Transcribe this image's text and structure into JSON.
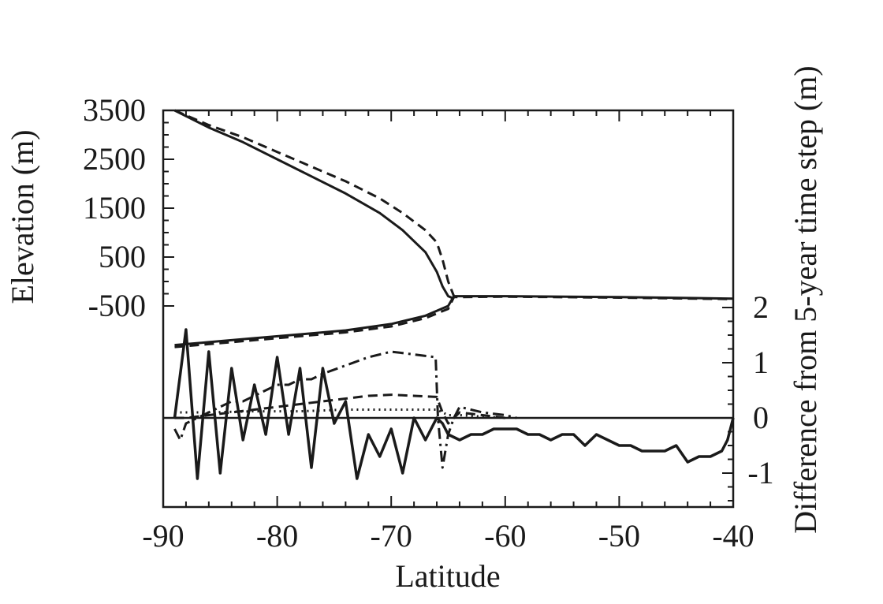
{
  "chart_data": {
    "type": "line",
    "xlabel": "Latitude",
    "ylabel_left": "Elevation (m)",
    "ylabel_right": "Difference from 5-year time step (m)",
    "xlim": [
      -90,
      -40
    ],
    "x_ticks": [
      -90,
      -80,
      -70,
      -60,
      -50,
      -40
    ],
    "elevation_axis": {
      "ylim": [
        -950,
        3500
      ],
      "ticks": [
        3500,
        2500,
        1500,
        500,
        -500
      ]
    },
    "difference_axis": {
      "ylim": [
        -1.6,
        2.2
      ],
      "ticks": [
        2,
        1,
        0,
        -1
      ]
    },
    "elevation_series": [
      {
        "style": "solid",
        "x": [
          -89,
          -86,
          -83,
          -80,
          -77,
          -74,
          -71,
          -69,
          -67,
          -66,
          -65.5,
          -65,
          -64.5
        ],
        "y": [
          3500,
          3150,
          2850,
          2500,
          2150,
          1800,
          1400,
          1050,
          600,
          200,
          -100,
          -300,
          -350
        ]
      },
      {
        "style": "dashed",
        "x": [
          -89,
          -86,
          -83,
          -80,
          -77,
          -74,
          -71,
          -69,
          -67,
          -66,
          -65.5,
          -65,
          -64.5,
          -64
        ],
        "y": [
          3500,
          3200,
          2950,
          2650,
          2350,
          2050,
          1700,
          1400,
          1050,
          800,
          450,
          0,
          -300,
          -350
        ]
      },
      {
        "style": "solid",
        "x": [
          -89,
          -86,
          -82,
          -78,
          -74,
          -70,
          -67,
          -65,
          -64.5,
          -60,
          -50,
          -40
        ],
        "y": [
          -1300,
          -1240,
          -1160,
          -1080,
          -1000,
          -870,
          -700,
          -500,
          -300,
          -300,
          -320,
          -350
        ]
      },
      {
        "style": "dashed",
        "x": [
          -89,
          -86,
          -82,
          -78,
          -74,
          -70,
          -67,
          -65,
          -64.5,
          -60,
          -50,
          -40
        ],
        "y": [
          -1340,
          -1280,
          -1200,
          -1120,
          -1040,
          -920,
          -750,
          -560,
          -320,
          -310,
          -330,
          -360
        ]
      }
    ],
    "difference_series": [
      {
        "style": "solid",
        "x": [
          -89,
          -88,
          -87,
          -86,
          -85,
          -84,
          -83,
          -82,
          -81,
          -80,
          -79,
          -78,
          -77,
          -76,
          -75,
          -74,
          -73,
          -72,
          -71,
          -70,
          -69,
          -68,
          -67,
          -66,
          -65.5,
          -65,
          -64,
          -63,
          -62,
          -61,
          -60,
          -59,
          -58,
          -57,
          -56,
          -55,
          -54,
          -53,
          -52,
          -51,
          -50,
          -49,
          -48,
          -47,
          -46,
          -45,
          -44,
          -43,
          -42,
          -41,
          -40.5,
          -40
        ],
        "y": [
          0.0,
          1.6,
          -1.1,
          1.2,
          -1.0,
          0.9,
          -0.4,
          0.6,
          -0.3,
          1.1,
          -0.3,
          0.9,
          -0.9,
          0.9,
          -0.1,
          0.3,
          -1.1,
          -0.3,
          -0.7,
          -0.2,
          -1.0,
          0.0,
          -0.4,
          0.0,
          -0.1,
          -0.3,
          -0.4,
          -0.3,
          -0.3,
          -0.2,
          -0.2,
          -0.2,
          -0.3,
          -0.3,
          -0.4,
          -0.3,
          -0.3,
          -0.5,
          -0.3,
          -0.4,
          -0.5,
          -0.5,
          -0.6,
          -0.6,
          -0.6,
          -0.5,
          -0.8,
          -0.7,
          -0.7,
          -0.6,
          -0.4,
          0.0
        ]
      },
      {
        "style": "dash-dot",
        "x": [
          -89,
          -88.5,
          -88,
          -87,
          -86,
          -85,
          -84,
          -83,
          -82,
          -81,
          -80,
          -79,
          -78,
          -77,
          -76,
          -74,
          -72,
          -70,
          -68,
          -66.1,
          -65.9,
          -65.5,
          -65,
          -64.5,
          -64,
          -62,
          -60,
          -59
        ],
        "y": [
          -0.2,
          -0.4,
          -0.1,
          0.0,
          0.1,
          0.2,
          0.3,
          0.3,
          0.4,
          0.5,
          0.6,
          0.6,
          0.7,
          0.7,
          0.8,
          0.95,
          1.1,
          1.2,
          1.15,
          1.1,
          0.0,
          -0.9,
          -0.3,
          0.0,
          0.2,
          0.1,
          0.05,
          0.0
        ]
      },
      {
        "style": "dashed",
        "x": [
          -89,
          -88,
          -86,
          -84,
          -82,
          -80,
          -78,
          -76,
          -74,
          -72,
          -70,
          -68,
          -66,
          -65.5,
          -65,
          -64,
          -62,
          -60
        ],
        "y": [
          0.0,
          0.0,
          0.05,
          0.1,
          0.15,
          0.2,
          0.25,
          0.3,
          0.35,
          0.4,
          0.42,
          0.4,
          0.38,
          0.1,
          -0.1,
          0.1,
          0.05,
          0.0
        ]
      },
      {
        "style": "dotted",
        "x": [
          -89,
          -86,
          -82,
          -78,
          -74,
          -70,
          -66,
          -65,
          -64,
          -60
        ],
        "y": [
          0.1,
          0.1,
          0.12,
          0.12,
          0.15,
          0.15,
          0.15,
          0.05,
          0.05,
          0.0
        ]
      }
    ]
  }
}
